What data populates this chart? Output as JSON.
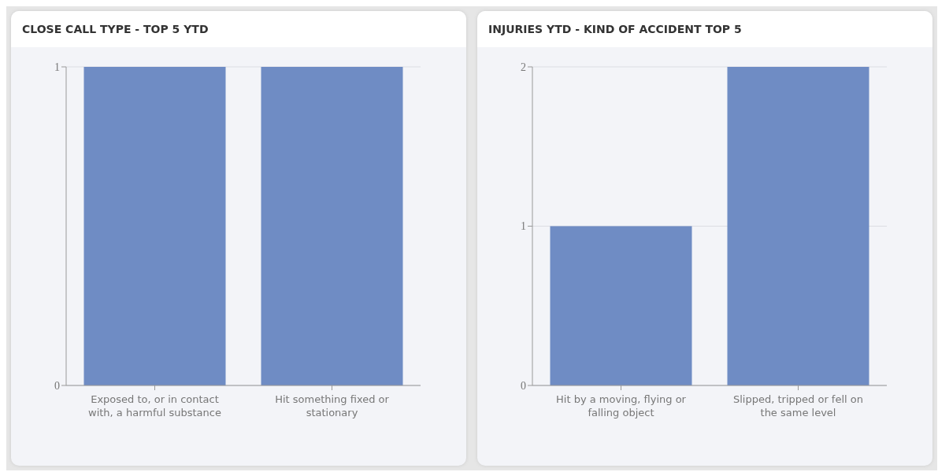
{
  "chart_data": [
    {
      "type": "bar",
      "title": "CLOSE CALL TYPE - TOP 5 YTD",
      "categories": [
        "Exposed to, or in contact with, a harmful substance",
        "Hit something fixed or stationary"
      ],
      "values": [
        1,
        1
      ],
      "color": "#6f8cc4",
      "ylim": [
        0,
        1
      ],
      "yticks": [
        0,
        1
      ],
      "grid": "y"
    },
    {
      "type": "bar",
      "title": "INJURIES YTD - KIND OF ACCIDENT TOP 5",
      "categories": [
        "Hit by a moving, flying or falling object",
        "Slipped, tripped or fell on the same level"
      ],
      "values": [
        1,
        2
      ],
      "color": "#6f8cc4",
      "ylim": [
        0,
        2
      ],
      "yticks": [
        0,
        1,
        2
      ],
      "grid": "y"
    }
  ]
}
